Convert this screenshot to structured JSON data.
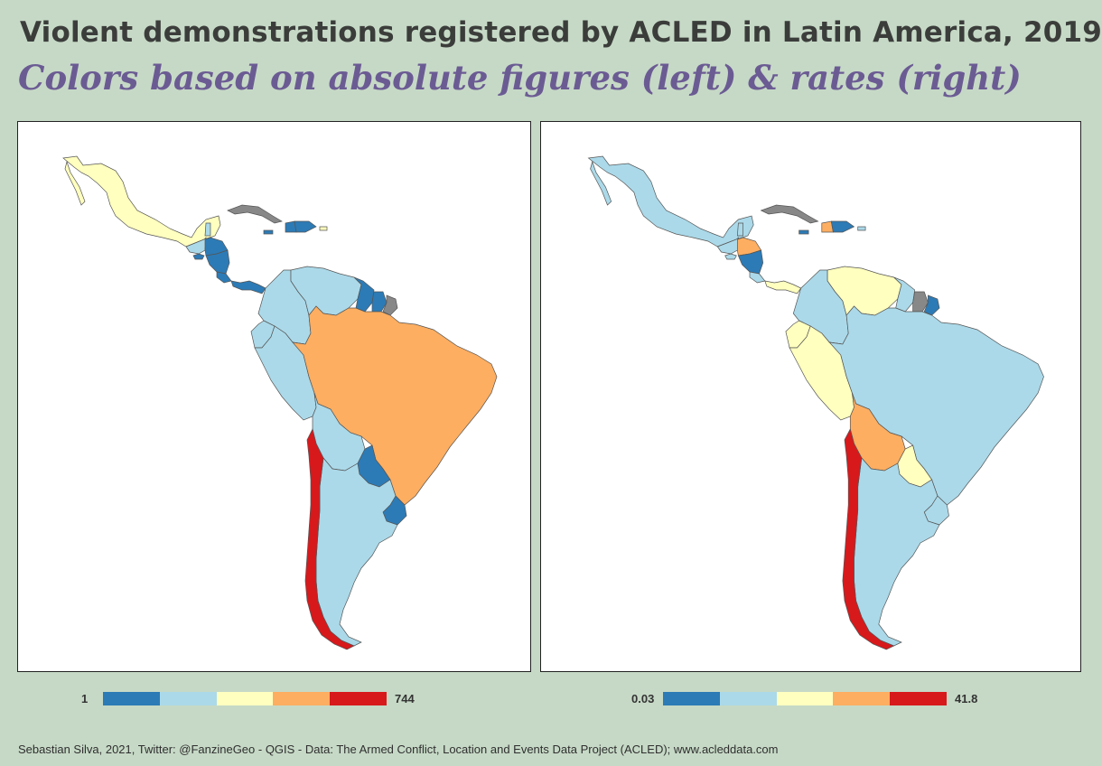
{
  "title": "Violent demonstrations registered by ACLED in Latin America, 2019",
  "subtitle": "Colors based on absolute figures (left) & rates (right)",
  "credit": "Sebastian Silva, 2021, Twitter: @FanzineGeo - QGIS - Data: The Armed Conflict, Location and Events Data Project (ACLED); www.acleddata.com",
  "colors": {
    "c1": "#2c7bb6",
    "c2": "#abd9e9",
    "c3": "#ffffbf",
    "c4": "#fdae61",
    "c5": "#d7191c",
    "nodata": "#888888",
    "background": "#c6d9c6",
    "title": "#3b3d3b",
    "subtitle": "#6b5b93"
  },
  "maps": {
    "absolute": {
      "legend_min": "1",
      "legend_max": "744",
      "classes": {
        "Mexico": "c3",
        "Guatemala": "c2",
        "Belize": "c2",
        "Honduras": "c1",
        "El Salvador": "c1",
        "Nicaragua": "c1",
        "Costa Rica": "c1",
        "Panama": "c1",
        "Cuba": "nodata",
        "Haiti": "c1",
        "Dominican Republic": "c1",
        "Puerto Rico": "c3",
        "Jamaica": "c1",
        "Colombia": "c2",
        "Venezuela": "c2",
        "Guyana": "c1",
        "Suriname": "c1",
        "French Guiana": "nodata",
        "Ecuador": "c2",
        "Peru": "c2",
        "Bolivia": "c2",
        "Brazil": "c4",
        "Paraguay": "c1",
        "Uruguay": "c1",
        "Argentina": "c2",
        "Chile": "c5"
      }
    },
    "rates": {
      "legend_min": "0.03",
      "legend_max": "41.8",
      "classes": {
        "Mexico": "c2",
        "Guatemala": "c2",
        "Belize": "c2",
        "Honduras": "c4",
        "El Salvador": "c2",
        "Nicaragua": "c1",
        "Costa Rica": "c2",
        "Panama": "c3",
        "Cuba": "nodata",
        "Haiti": "c4",
        "Dominican Republic": "c1",
        "Puerto Rico": "c2",
        "Jamaica": "c1",
        "Colombia": "c2",
        "Venezuela": "c3",
        "Guyana": "c2",
        "Suriname": "nodata",
        "French Guiana": "c1",
        "Ecuador": "c3",
        "Peru": "c3",
        "Bolivia": "c4",
        "Brazil": "c2",
        "Paraguay": "c3",
        "Uruguay": "c2",
        "Argentina": "c2",
        "Chile": "c5"
      }
    }
  }
}
